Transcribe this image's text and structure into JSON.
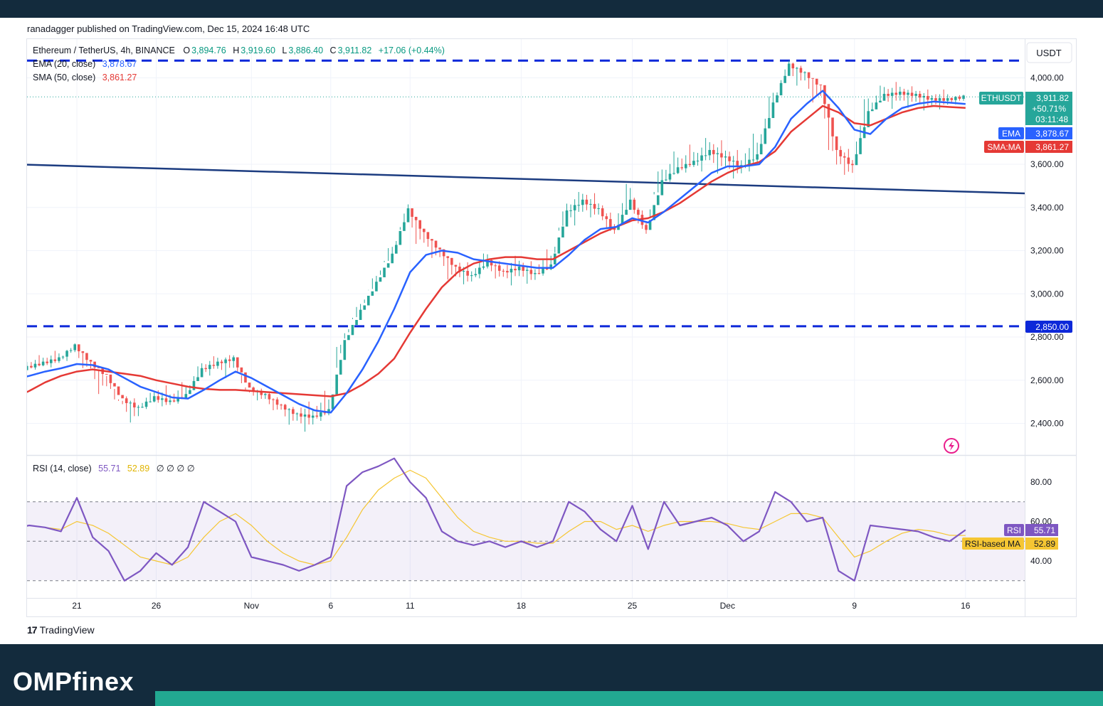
{
  "header": {
    "published": "ranadagger published on TradingView.com, Dec 15, 2024 16:48 UTC"
  },
  "legend": {
    "symbol": "Ethereum / TetherUS, 4h, BINANCE",
    "o_label": "O",
    "o": "3,894.76",
    "h_label": "H",
    "h": "3,919.60",
    "l_label": "L",
    "l": "3,886.40",
    "c_label": "C",
    "c": "3,911.82",
    "change": "+17.06 (+0.44%)",
    "ema_label": "EMA (20, close)",
    "ema_value": "3,878.67",
    "sma_label": "SMA (50, close)",
    "sma_value": "3,861.27",
    "rsi_label": "RSI (14, close)",
    "rsi_value": "55.71",
    "rsi_ma_value": "52.89",
    "rsi_extra": "∅ ∅ ∅ ∅"
  },
  "badges": {
    "currency": "USDT",
    "ticker": "ETHUSDT",
    "price": "3,911.82",
    "pct": "+50.71%",
    "countdown": "03:11:48",
    "ema_tag": "EMA",
    "ema_val": "3,878.67",
    "sma_tag": "SMA:MA",
    "sma_val": "3,861.27",
    "support": "2,850.00",
    "rsi_tag": "RSI",
    "rsi_val": "55.71",
    "rsima_tag": "RSI-based MA",
    "rsima_val": "52.89"
  },
  "footer": {
    "tradingview": "TradingView",
    "brand": "OMPfinex"
  },
  "colors": {
    "up": "#26a69a",
    "down": "#ef5350",
    "ema": "#2962ff",
    "sma": "#e53935",
    "rsi": "#7e57c2",
    "rsi_ma": "#f5c633",
    "level": "#0d28d9",
    "trend": "#1c3c80"
  },
  "chart_data": {
    "type": "line",
    "symbol": "ETHUSDT",
    "timeframe": "4h",
    "price_axis": {
      "ticks": [
        2400,
        2600,
        2800,
        3000,
        3200,
        3400,
        3600,
        4000
      ],
      "labels": [
        "2,400.00",
        "2,600.00",
        "2,800.00",
        "3,000.00",
        "3,200.00",
        "3,400.00",
        "3,600.00",
        "4,000.00"
      ]
    },
    "time_axis": {
      "labels": [
        "21",
        "26",
        "Nov",
        "6",
        "11",
        "18",
        "25",
        "Dec",
        "9",
        "16"
      ],
      "day_index": [
        4,
        9,
        15,
        20,
        25,
        32,
        39,
        45,
        53,
        60
      ]
    },
    "resistance": 4080,
    "support": 2850,
    "trendline": {
      "from": {
        "day": -0.2,
        "price": 3600
      },
      "to": {
        "day": 63.8,
        "price": 3465
      }
    },
    "price_series": {
      "day": [
        -0.2,
        1,
        2,
        3,
        4,
        5,
        6,
        7,
        8,
        9,
        10,
        11,
        12,
        13,
        14,
        15,
        16,
        17,
        18,
        19,
        20,
        21,
        22,
        23,
        24,
        25,
        26,
        27,
        28,
        29,
        30,
        31,
        32,
        33,
        34,
        35,
        36,
        37,
        38,
        39,
        40,
        41,
        42,
        43,
        44,
        45,
        46,
        47,
        48,
        49,
        50,
        51,
        52,
        53,
        54,
        55,
        56,
        57,
        58,
        59,
        60
      ],
      "close": [
        2630,
        2660,
        2680,
        2700,
        2760,
        2680,
        2620,
        2510,
        2470,
        2520,
        2500,
        2530,
        2650,
        2680,
        2700,
        2560,
        2530,
        2480,
        2440,
        2430,
        2460,
        2780,
        2920,
        3050,
        3180,
        3390,
        3280,
        3200,
        3120,
        3080,
        3150,
        3100,
        3120,
        3090,
        3130,
        3380,
        3430,
        3390,
        3290,
        3430,
        3290,
        3520,
        3580,
        3610,
        3660,
        3630,
        3590,
        3640,
        3880,
        4060,
        4020,
        3960,
        3660,
        3590,
        3840,
        3920,
        3930,
        3920,
        3900,
        3900,
        3912
      ],
      "high": [
        2680,
        2700,
        2720,
        2740,
        2770,
        2740,
        2660,
        2560,
        2530,
        2560,
        2580,
        2600,
        2700,
        2720,
        2720,
        2620,
        2570,
        2540,
        2490,
        2500,
        2560,
        2850,
        2980,
        3110,
        3250,
        3430,
        3360,
        3260,
        3200,
        3160,
        3210,
        3170,
        3180,
        3160,
        3220,
        3450,
        3490,
        3480,
        3420,
        3550,
        3450,
        3630,
        3680,
        3700,
        3740,
        3720,
        3680,
        3760,
        3980,
        4090,
        4070,
        4010,
        3890,
        3700,
        3970,
        3990,
        3980,
        3960,
        3950,
        3940,
        3920
      ],
      "low": [
        2600,
        2630,
        2650,
        2660,
        2680,
        2610,
        2500,
        2450,
        2380,
        2460,
        2470,
        2490,
        2560,
        2620,
        2610,
        2510,
        2490,
        2430,
        2370,
        2360,
        2410,
        2680,
        2860,
        2990,
        3120,
        3250,
        3170,
        3120,
        3020,
        3020,
        3060,
        3040,
        3040,
        3030,
        3080,
        3250,
        3310,
        3330,
        3250,
        3290,
        3250,
        3420,
        3510,
        3560,
        3560,
        3540,
        3510,
        3560,
        3700,
        3910,
        3940,
        3850,
        3510,
        3510,
        3620,
        3850,
        3860,
        3860,
        3840,
        3860,
        3880
      ]
    },
    "ema20": [
      2600,
      2620,
      2640,
      2655,
      2675,
      2670,
      2650,
      2610,
      2570,
      2545,
      2520,
      2515,
      2555,
      2600,
      2640,
      2610,
      2570,
      2530,
      2490,
      2460,
      2450,
      2540,
      2650,
      2780,
      2930,
      3100,
      3180,
      3200,
      3190,
      3160,
      3150,
      3140,
      3130,
      3120,
      3120,
      3180,
      3250,
      3300,
      3310,
      3350,
      3330,
      3380,
      3440,
      3500,
      3560,
      3590,
      3590,
      3600,
      3680,
      3810,
      3880,
      3940,
      3860,
      3760,
      3740,
      3810,
      3860,
      3880,
      3890,
      3885,
      3879
    ],
    "sma50": [
      2510,
      2550,
      2590,
      2620,
      2640,
      2650,
      2640,
      2630,
      2620,
      2600,
      2585,
      2570,
      2560,
      2555,
      2555,
      2550,
      2545,
      2540,
      2535,
      2530,
      2525,
      2540,
      2580,
      2630,
      2700,
      2820,
      2930,
      3030,
      3100,
      3140,
      3160,
      3170,
      3170,
      3160,
      3160,
      3200,
      3240,
      3280,
      3310,
      3340,
      3350,
      3380,
      3420,
      3470,
      3520,
      3560,
      3590,
      3610,
      3660,
      3750,
      3810,
      3870,
      3840,
      3790,
      3780,
      3810,
      3840,
      3860,
      3870,
      3865,
      3861
    ],
    "rsi_axis": {
      "ticks": [
        40,
        60,
        80
      ],
      "labels": [
        "40.00",
        "60.00",
        "80.00"
      ],
      "upper_band": 70,
      "mid": 50,
      "lower_band": 30
    },
    "rsi": [
      56,
      58,
      57,
      55,
      72,
      52,
      45,
      30,
      35,
      44,
      38,
      47,
      70,
      65,
      60,
      42,
      40,
      38,
      35,
      38,
      42,
      78,
      85,
      88,
      92,
      80,
      72,
      55,
      50,
      48,
      50,
      47,
      50,
      47,
      50,
      70,
      65,
      56,
      50,
      68,
      46,
      70,
      58,
      60,
      62,
      58,
      50,
      55,
      75,
      70,
      60,
      62,
      35,
      30,
      58,
      57,
      56,
      55,
      52,
      50,
      55.71
    ],
    "rsi_ma": [
      57,
      58,
      57,
      56,
      60,
      58,
      54,
      48,
      42,
      40,
      38,
      42,
      52,
      60,
      64,
      58,
      50,
      44,
      40,
      38,
      40,
      52,
      66,
      76,
      82,
      86,
      82,
      72,
      62,
      55,
      52,
      50,
      50,
      49,
      49,
      55,
      60,
      60,
      56,
      58,
      55,
      58,
      60,
      60,
      60,
      59,
      57,
      56,
      60,
      64,
      64,
      62,
      52,
      42,
      45,
      50,
      54,
      56,
      55,
      53,
      52.89
    ]
  }
}
